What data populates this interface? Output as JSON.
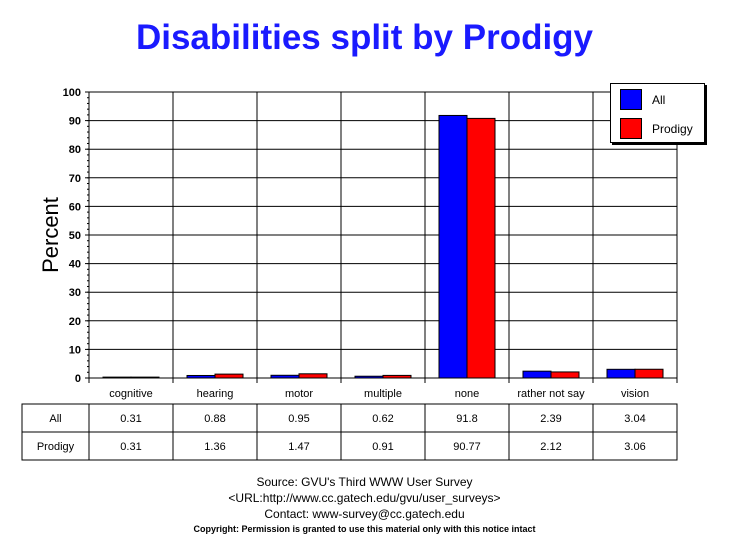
{
  "chart_data": {
    "type": "bar",
    "title": "Disabilities split by Prodigy",
    "xlabel": "",
    "ylabel": "Percent",
    "ylim": [
      0,
      100
    ],
    "yticks": [
      0,
      10,
      20,
      30,
      40,
      50,
      60,
      70,
      80,
      90,
      100
    ],
    "grid": true,
    "legend_position": "top-right",
    "categories": [
      "cognitive",
      "hearing",
      "motor",
      "multiple",
      "none",
      "rather not say",
      "vision"
    ],
    "series": [
      {
        "name": "All",
        "color": "#0000ff",
        "values": [
          0.31,
          0.88,
          0.95,
          0.62,
          91.8,
          2.39,
          3.04
        ],
        "labels": [
          "0.31",
          "0.88",
          "0.95",
          "0.62",
          "91.8",
          "2.39",
          "3.04"
        ]
      },
      {
        "name": "Prodigy",
        "color": "#ff0000",
        "values": [
          0.31,
          1.36,
          1.47,
          0.91,
          90.77,
          2.12,
          3.06
        ],
        "labels": [
          "0.31",
          "1.36",
          "1.47",
          "0.91",
          "90.77",
          "2.12",
          "3.06"
        ]
      }
    ]
  },
  "footer": {
    "source": "Source: GVU's Third WWW User Survey",
    "url": "<URL:http://www.cc.gatech.edu/gvu/user_surveys>",
    "contact": "Contact: www-survey@cc.gatech.edu",
    "copyright": "Copyright: Permission is granted to use this material only with this notice intact"
  }
}
